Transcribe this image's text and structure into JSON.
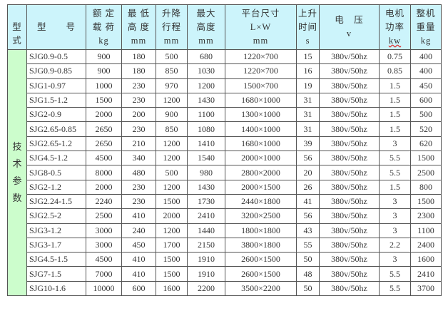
{
  "header": {
    "type": [
      "型",
      "式"
    ],
    "model": "型　　号",
    "load": [
      "额 定",
      "载 荷",
      "kg"
    ],
    "min_height": [
      "最 低",
      "高 度",
      "mm"
    ],
    "stroke": [
      "升降",
      "行程",
      "mm"
    ],
    "max_height": [
      "最大",
      "高度",
      "mm"
    ],
    "platform": [
      "平台尺寸",
      "L×W",
      "mm"
    ],
    "rise_time": [
      "上升",
      "时间",
      "s"
    ],
    "voltage": [
      "电　压",
      "v"
    ],
    "power": [
      "电机",
      "功率",
      "kw"
    ],
    "weight": [
      "整机",
      "重量",
      "kg"
    ]
  },
  "side_label": [
    "技",
    "术",
    "参",
    "数"
  ],
  "rows": [
    [
      "SJG0.9-0.5",
      "900",
      "180",
      "500",
      "680",
      "1220×700",
      "15",
      "380v/50hz",
      "0.75",
      "400"
    ],
    [
      "SJG0.9-0.85",
      "900",
      "180",
      "850",
      "1030",
      "1220×700",
      "16",
      "380v/50hz",
      "0.85",
      "400"
    ],
    [
      "SJG1-0.97",
      "1000",
      "230",
      "970",
      "1200",
      "1500×700",
      "19",
      "380v/50hz",
      "1.5",
      "450"
    ],
    [
      "SJG1.5-1.2",
      "1500",
      "230",
      "1200",
      "1430",
      "1680×1000",
      "31",
      "380v/50hz",
      "1.5",
      "600"
    ],
    [
      "SJG2-0.9",
      "2000",
      "200",
      "900",
      "1100",
      "1300×1000",
      "31",
      "380v/50hz",
      "1.5",
      "500"
    ],
    [
      "SJG2.65-0.85",
      "2650",
      "230",
      "850",
      "1080",
      "1400×1000",
      "31",
      "380v/50hz",
      "1.5",
      "520"
    ],
    [
      "SJG2.65-1.2",
      "2650",
      "210",
      "1200",
      "1410",
      "1680×1000",
      "39",
      "380v/50hz",
      "3",
      "620"
    ],
    [
      "SJG4.5-1.2",
      "4500",
      "340",
      "1200",
      "1540",
      "2000×1000",
      "56",
      "380v/50hz",
      "5.5",
      "1500"
    ],
    [
      "SJG8-0.5",
      "8000",
      "480",
      "500",
      "980",
      "2800×2000",
      "20",
      "380v/50hz",
      "5.5",
      "2500"
    ],
    [
      "SJG2-1.2",
      "2000",
      "230",
      "1200",
      "1430",
      "2000×1500",
      "26",
      "380v/50hz",
      "1.5",
      "800"
    ],
    [
      "SJG2.24-1.5",
      "2240",
      "230",
      "1500",
      "1730",
      "2440×1800",
      "41",
      "380v/50hz",
      "3",
      "1500"
    ],
    [
      "SJG2.5-2",
      "2500",
      "410",
      "2000",
      "2410",
      "3200×2500",
      "56",
      "380v/50hz",
      "3",
      "2300"
    ],
    [
      "SJG3-1.2",
      "3000",
      "240",
      "1200",
      "1440",
      "1800×1800",
      "43",
      "380v/50hz",
      "3",
      "1100"
    ],
    [
      "SJG3-1.7",
      "3000",
      "450",
      "1700",
      "2150",
      "3800×1800",
      "55",
      "380v/50hz",
      "2.2",
      "2400"
    ],
    [
      "SJG4.5-1.5",
      "4500",
      "410",
      "1500",
      "1910",
      "2600×1500",
      "50",
      "380v/50hz",
      "3",
      "1600"
    ],
    [
      "SJG7-1.5",
      "7000",
      "410",
      "1500",
      "1910",
      "2600×1500",
      "48",
      "380v/50hz",
      "5.5",
      "2410"
    ],
    [
      "SJG10-1.6",
      "10000",
      "600",
      "1600",
      "2200",
      "3500×2200",
      "50",
      "380v/50hz",
      "5.5",
      "3700"
    ]
  ]
}
